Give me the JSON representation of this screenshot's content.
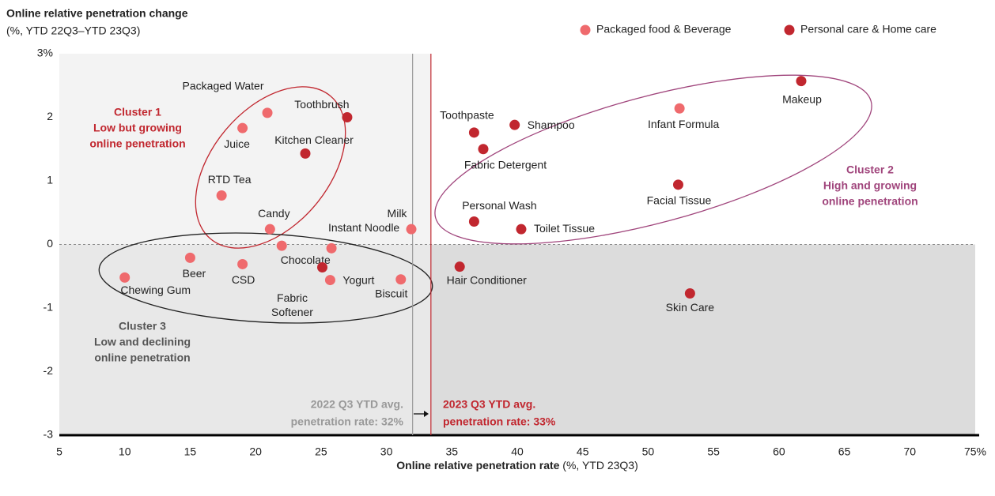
{
  "chart_data": {
    "type": "scatter",
    "title": [
      "Online relative penetration change",
      "(%, YTD 22Q3–YTD 23Q3)"
    ],
    "x_label": [
      "Online relative penetration rate",
      " (%, YTD 23Q3)"
    ],
    "xlim": [
      5,
      75
    ],
    "xticks": [
      5,
      10,
      15,
      20,
      25,
      30,
      35,
      40,
      45,
      50,
      55,
      60,
      65,
      70,
      {
        "value": 75,
        "label": "75%"
      }
    ],
    "ylim": [
      -3,
      3
    ],
    "yticks": [
      -3,
      -2,
      -1,
      0,
      1,
      2,
      {
        "value": 3,
        "label": "3%"
      }
    ],
    "legend": "top-right",
    "series": [
      {
        "name": "Packaged food & Beverage",
        "color": "#ef6a6d",
        "labels": [
          "Packaged Water",
          "Juice",
          "RTD Tea",
          "Candy",
          "Milk",
          "Instant Noodle",
          "Chocolate",
          "Beer",
          "CSD",
          "Chewing Gum",
          "Yogurt",
          "Biscuit",
          "Infant Formula"
        ],
        "x": [
          20.9,
          19.0,
          17.4,
          21.1,
          31.9,
          25.8,
          22.0,
          15.0,
          19.0,
          10.0,
          25.7,
          31.1,
          52.4
        ],
        "values": [
          2.07,
          1.83,
          0.77,
          0.24,
          0.24,
          -0.06,
          -0.02,
          -0.21,
          -0.31,
          -0.52,
          -0.56,
          -0.55,
          2.14
        ]
      },
      {
        "name": "Personal care & Home care",
        "color": "#c1272f",
        "labels": [
          "Toothbrush",
          "Kitchen Cleaner",
          [
            "Fabric",
            "Softener"
          ],
          "Toothpaste",
          "Shampoo",
          "Fabric Detergent",
          "Personal Wash",
          "Toilet Tissue",
          "Hair Conditioner",
          "Makeup",
          "Facial Tissue",
          "Skin Care"
        ],
        "x": [
          27.0,
          23.8,
          25.1,
          36.7,
          39.8,
          37.4,
          36.7,
          40.3,
          35.6,
          61.7,
          52.3,
          53.2
        ],
        "values": [
          2.0,
          1.43,
          -0.36,
          1.76,
          1.88,
          1.5,
          0.36,
          0.24,
          -0.35,
          2.57,
          0.94,
          -0.77
        ]
      }
    ],
    "reference_lines": [
      {
        "value": 32,
        "color": "#999999",
        "label": [
          "2022 Q3 YTD avg.",
          "penetration rate: 32%"
        ]
      },
      {
        "value": 33.4,
        "color": "#c1272f",
        "label": [
          "2023 Q3 YTD avg.",
          "penetration rate: 33%"
        ]
      }
    ],
    "annotations": [
      {
        "color": "#c1272f",
        "lines": [
          "Cluster 1",
          "Low but growing",
          "online penetration"
        ]
      },
      {
        "color": "#a0457c",
        "lines": [
          "Cluster 2",
          "High and growing",
          "online penetration"
        ]
      },
      {
        "color": "#555555",
        "lines": [
          "Cluster 3",
          "Low and declining",
          "online penetration"
        ]
      }
    ]
  }
}
